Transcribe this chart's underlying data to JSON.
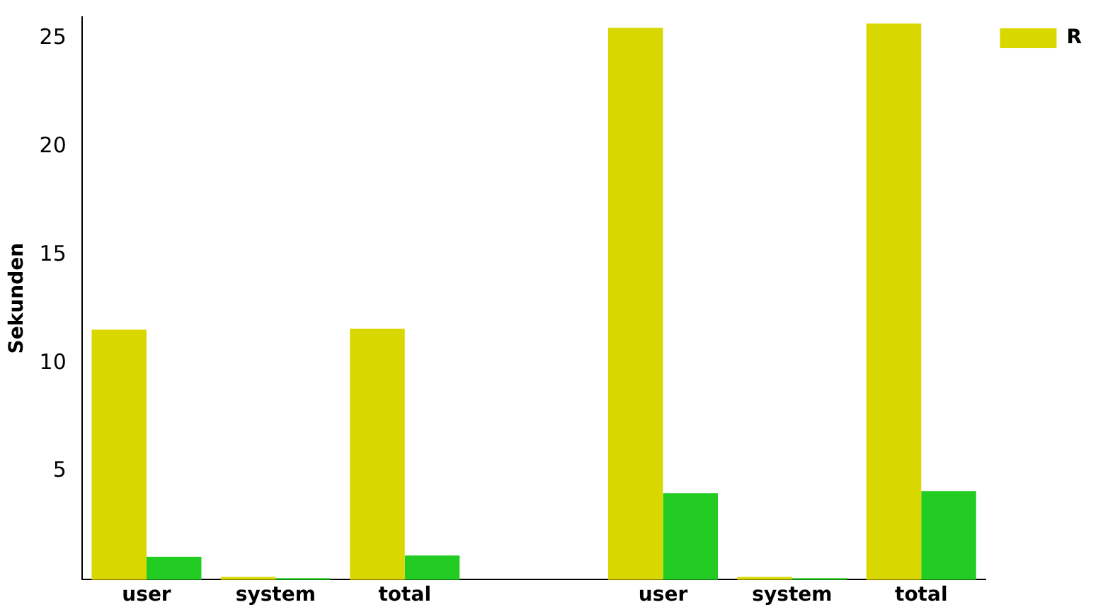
{
  "chart_data": {
    "type": "bar",
    "ylabel": "Sekunden",
    "categories": [
      "user",
      "system",
      "total",
      null,
      "user",
      "system",
      "total"
    ],
    "series": [
      {
        "name": "R",
        "color": "#d8d800",
        "values": [
          11.55,
          0.13,
          11.6,
          null,
          25.5,
          0.13,
          25.7
        ]
      },
      {
        "color": "#22cc22",
        "values": [
          1.06,
          0.07,
          1.12,
          null,
          4.0,
          0.07,
          4.1
        ]
      }
    ],
    "ylim": [
      0,
      26
    ],
    "yticks": [
      5,
      10,
      15,
      20,
      25
    ],
    "grid": false,
    "legend": "top right"
  }
}
